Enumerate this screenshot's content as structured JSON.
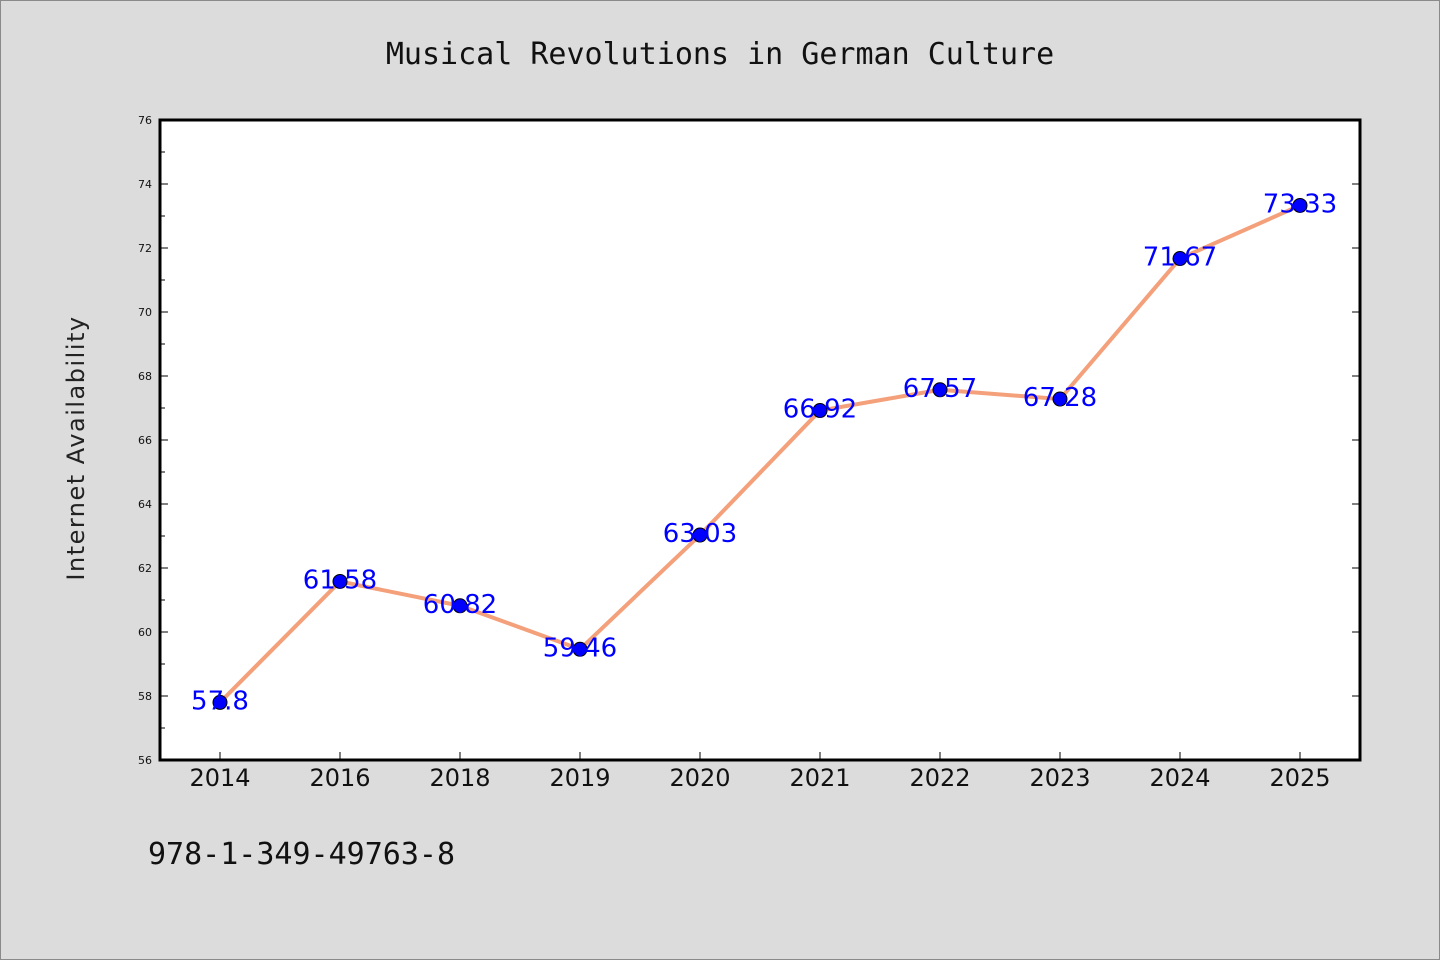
{
  "chart_data": {
    "type": "line",
    "title": "Musical Revolutions in German Culture",
    "xlabel": "",
    "ylabel": "Internet Availability",
    "categories": [
      "2014",
      "2016",
      "2018",
      "2019",
      "2020",
      "2021",
      "2022",
      "2023",
      "2024",
      "2025"
    ],
    "values": [
      57.8,
      61.58,
      60.82,
      59.46,
      63.03,
      66.92,
      67.57,
      67.28,
      71.67,
      73.33
    ],
    "data_labels": [
      "57.8",
      "61.58",
      "60.82",
      "59.46",
      "63.03",
      "66.92",
      "67.57",
      "67.28",
      "71.67",
      "73.33"
    ],
    "ylim": [
      56,
      76
    ],
    "yticks": [
      "56",
      "58",
      "60",
      "62",
      "64",
      "66",
      "68",
      "70",
      "72",
      "74",
      "76"
    ],
    "grid": false,
    "line_color": "#f4a07a",
    "marker_color": "#0000ff",
    "label_color": "#0000ff"
  },
  "footer": {
    "isbn": "978-1-349-49763-8"
  }
}
